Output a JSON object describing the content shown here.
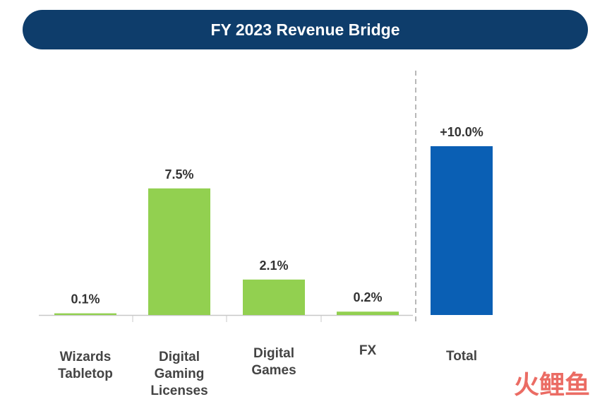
{
  "chart_data": {
    "type": "bar",
    "title": "FY 2023 Revenue Bridge",
    "categories": [
      "Wizards Tabletop",
      "Digital Gaming Licenses",
      "Digital Games",
      "FX",
      "Total"
    ],
    "values": [
      0.1,
      7.5,
      2.1,
      0.2,
      10.0
    ],
    "value_labels": [
      "0.1%",
      "7.5%",
      "2.1%",
      "0.2%",
      "+10.0%"
    ],
    "colors": [
      "#92d050",
      "#92d050",
      "#92d050",
      "#92d050",
      "#0a5fb4"
    ],
    "watermark": "火鲤鱼"
  }
}
